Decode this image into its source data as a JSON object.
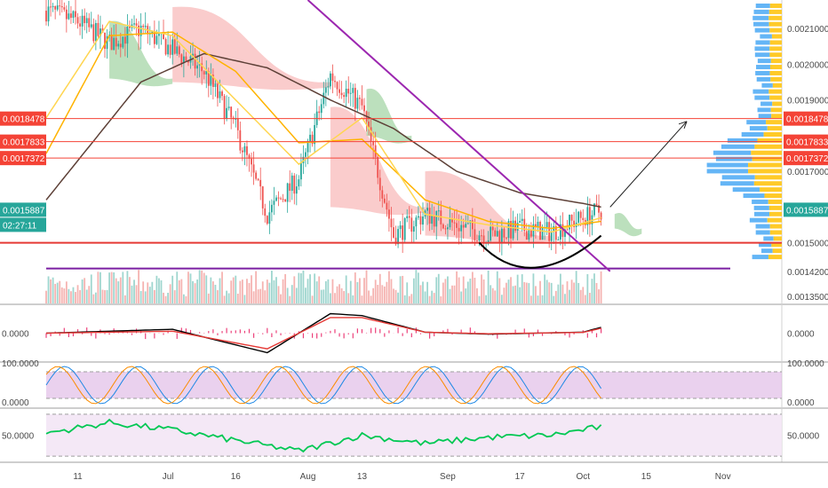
{
  "chart_data": [
    {
      "panel": "price",
      "type": "candlestick",
      "x_axis": {
        "tick_labels": [
          "11",
          "Jul",
          "16",
          "Aug",
          "13",
          "Sep",
          "17",
          "Oct",
          "15",
          "Nov"
        ]
      },
      "y_axis": {
        "position": "right",
        "range": [
          0.00133,
          0.00218
        ],
        "tick_labels": [
          "0.0021000",
          "0.0020000",
          "0.0019000",
          "0.0017000",
          "0.0015000",
          "0.0014200",
          "0.0013500"
        ],
        "tick_values": [
          0.0021,
          0.002,
          0.0019,
          0.0017,
          0.0015,
          0.00142,
          0.00135
        ]
      },
      "close_series": {
        "x": [
          "Jun 04",
          "Jun 11",
          "Jun 18",
          "Jun 25",
          "Jul 02",
          "Jul 09",
          "Jul 16",
          "Jul 23",
          "Jul 30",
          "Aug 06",
          "Aug 13",
          "Aug 20",
          "Aug 27",
          "Sep 03",
          "Sep 10",
          "Sep 17",
          "Sep 24",
          "Oct 01",
          "Oct 05"
        ],
        "values": [
          0.00215,
          0.00212,
          0.00206,
          0.0021,
          0.00204,
          0.00198,
          0.00182,
          0.00158,
          0.00168,
          0.00197,
          0.00188,
          0.00152,
          0.00158,
          0.00155,
          0.00152,
          0.00154,
          0.00153,
          0.00157,
          0.00159
        ]
      },
      "moving_averages": [
        {
          "color": "#5d4037",
          "x": [
            "Jun 04",
            "Jun 25",
            "Jul 09",
            "Jul 23",
            "Aug 06",
            "Aug 20",
            "Sep 03",
            "Sep 17",
            "Oct 01",
            "Oct 05"
          ],
          "values": [
            0.00162,
            0.00195,
            0.00203,
            0.00199,
            0.0019,
            0.00182,
            0.0017,
            0.00164,
            0.00161,
            0.0016
          ]
        },
        {
          "color": "#ffb300",
          "x": [
            "Jun 04",
            "Jun 18",
            "Jul 02",
            "Jul 16",
            "Jul 30",
            "Aug 13",
            "Aug 27",
            "Sep 10",
            "Sep 24",
            "Oct 05"
          ],
          "values": [
            0.00175,
            0.00208,
            0.00209,
            0.00198,
            0.00178,
            0.00179,
            0.00162,
            0.00156,
            0.00154,
            0.00156
          ]
        },
        {
          "color": "#ffd54f",
          "x": [
            "Jun 04",
            "Jun 18",
            "Jul 02",
            "Jul 16",
            "Jul 30",
            "Aug 13",
            "Aug 27",
            "Sep 10",
            "Sep 24",
            "Oct 05"
          ],
          "values": [
            0.00185,
            0.00212,
            0.00208,
            0.0019,
            0.00172,
            0.00185,
            0.00158,
            0.00155,
            0.00153,
            0.00157
          ]
        }
      ],
      "horizontal_levels": [
        {
          "value": 0.0018478,
          "label": "0.0018478",
          "color": "#f44336"
        },
        {
          "value": 0.0017833,
          "label": "0.0017833",
          "color": "#f44336"
        },
        {
          "value": 0.0017372,
          "label": "0.0017372",
          "color": "#f44336"
        },
        {
          "value": 0.0015,
          "color": "#e53935"
        },
        {
          "value": 0.001428,
          "color": "#7b1fa2"
        }
      ],
      "current_price": {
        "label": "0.0015887",
        "countdown": "02:27:11",
        "color": "#26a69a"
      },
      "trendline": {
        "color": "#9c27b0",
        "x": [
          "Aug 01",
          "Oct 07"
        ],
        "values": [
          0.00218,
          0.00142
        ]
      },
      "projection_arrow": {
        "x": [
          "Oct 07",
          "Oct 24"
        ],
        "values": [
          0.0016,
          0.00184
        ]
      },
      "cup": {
        "x": [
          "Sep 08",
          "Sep 19",
          "Oct 05"
        ],
        "values": [
          0.0015,
          0.00142,
          0.00152
        ]
      },
      "volume_profile": {
        "levels": 42
      },
      "ichimoku_cloud": true
    },
    {
      "panel": "macd",
      "type": "line",
      "y_axis": {
        "tick_labels": [
          "0.0000"
        ]
      },
      "series": [
        {
          "color": "#000000",
          "x": [
            "Jun 04",
            "Jul 02",
            "Jul 23",
            "Aug 06",
            "Aug 13",
            "Aug 27",
            "Sep 10",
            "Oct 01",
            "Oct 05"
          ],
          "values": [
            0,
            0.2,
            -1,
            1,
            0.9,
            0.05,
            -0.05,
            0.05,
            0.3
          ]
        },
        {
          "color": "#e53935",
          "x": [
            "Jun 04",
            "Jul 02",
            "Jul 23",
            "Aug 06",
            "Aug 13",
            "Aug 27",
            "Sep 10",
            "Oct 01",
            "Oct 05"
          ],
          "values": [
            0,
            0.1,
            -0.8,
            0.8,
            0.8,
            0.05,
            -0.03,
            0.04,
            0.25
          ]
        }
      ]
    },
    {
      "panel": "stochastic-rsi",
      "type": "line",
      "y_axis": {
        "range": [
          0,
          100
        ],
        "tick_labels": [
          "100.0000",
          "0.0000"
        ]
      },
      "band": [
        20,
        80
      ],
      "series": [
        {
          "color": "#1e88e5",
          "oscillating": true
        },
        {
          "color": "#fb8c00",
          "oscillating": true
        }
      ]
    },
    {
      "panel": "rsi",
      "type": "line",
      "y_axis": {
        "range": [
          30,
          70
        ],
        "tick_labels": [
          "50.0000"
        ]
      },
      "band": [
        30,
        70
      ],
      "series": [
        {
          "color": "#00c853",
          "x": [
            "Jun 04",
            "Jun 18",
            "Jul 02",
            "Jul 16",
            "Jul 30",
            "Aug 13",
            "Aug 27",
            "Sep 10",
            "Sep 24",
            "Oct 05"
          ],
          "values": [
            52,
            62,
            55,
            45,
            35,
            50,
            42,
            48,
            50,
            58
          ]
        }
      ]
    }
  ]
}
